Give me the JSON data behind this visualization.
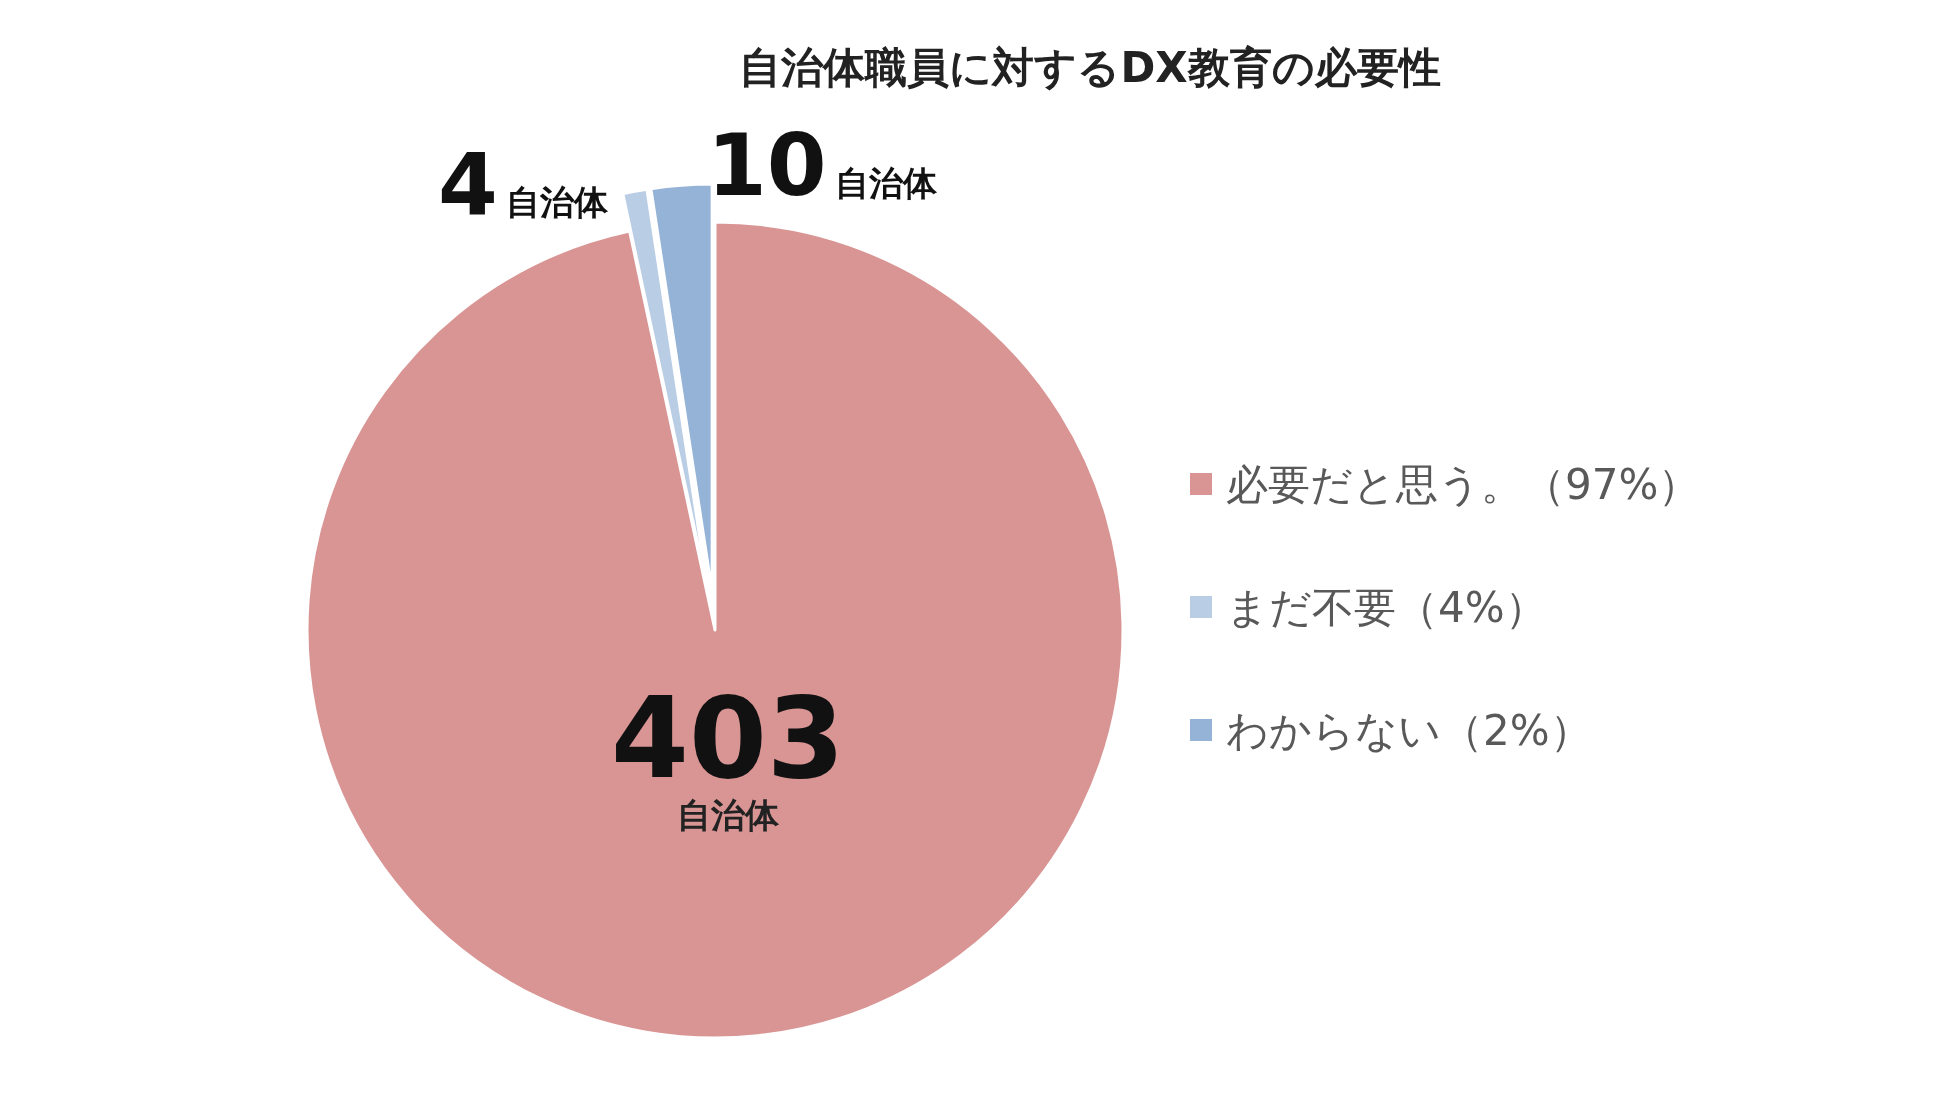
{
  "chart_data": {
    "type": "pie",
    "title": "自治体職員に対するDX教育の必要性",
    "categories": [
      "必要だと思う。（97%）",
      "まだ不要（4%）",
      "わからない（2%）"
    ],
    "values": [
      403,
      4,
      10
    ],
    "colors": [
      "#d99594",
      "#b9cde5",
      "#95b3d7"
    ],
    "value_labels": [
      "403自治体",
      "4自治体",
      "10自治体"
    ],
    "legend": "right"
  }
}
